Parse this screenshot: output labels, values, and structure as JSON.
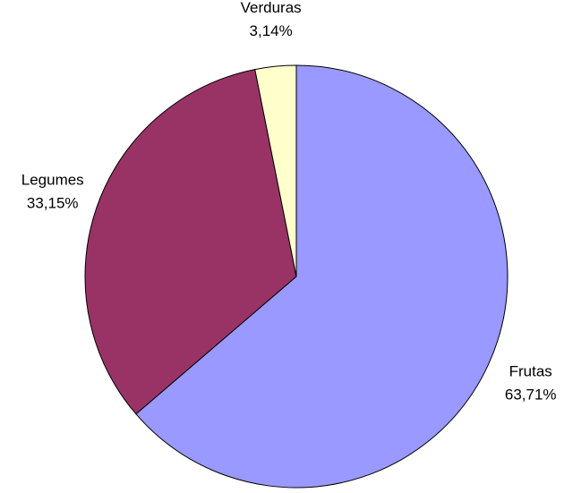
{
  "chart_data": {
    "type": "pie",
    "categories": [
      "Frutas",
      "Legumes",
      "Verduras"
    ],
    "values": [
      63.71,
      33.15,
      3.14
    ],
    "value_labels": [
      "63,71%",
      "33,15%",
      "3,14%"
    ],
    "colors": [
      "#9999ff",
      "#993366",
      "#ffffcc"
    ]
  }
}
